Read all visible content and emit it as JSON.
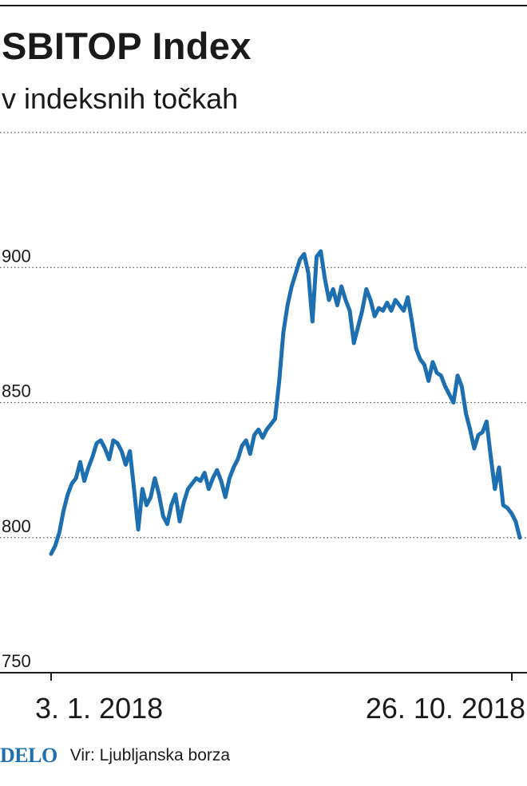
{
  "header": {
    "title": "SBITOP Index",
    "subtitle": "v indeksnih točkah"
  },
  "footer": {
    "logo_text": "DELO",
    "source_text": "Vir: Ljubljanska borza"
  },
  "colors": {
    "line": "#1d6fb0",
    "text": "#1a1a1a",
    "grid": "#555555",
    "logo": "#1d6fb0"
  },
  "chart_data": {
    "type": "line",
    "title": "SBITOP Index",
    "subtitle": "v indeksnih točkah",
    "xlabel": "",
    "ylabel": "",
    "ylim": [
      750,
      950
    ],
    "yticks": [
      750,
      800,
      850,
      900
    ],
    "ytick_labels": [
      "750",
      "800",
      "850",
      "900"
    ],
    "xtick_labels": [
      "3. 1. 2018",
      "26. 10. 2018"
    ],
    "grid": true,
    "legend": "none",
    "series": [
      {
        "values": [
          794,
          797,
          802,
          810,
          816,
          820,
          822,
          828,
          821,
          826,
          830,
          835,
          836,
          833,
          829,
          836,
          835,
          832,
          827,
          832,
          818,
          803,
          818,
          812,
          815,
          822,
          816,
          808,
          805,
          812,
          816,
          806,
          813,
          818,
          820,
          822,
          821,
          824,
          818,
          822,
          825,
          821,
          815,
          822,
          826,
          829,
          834,
          836,
          831,
          838,
          840,
          837,
          840,
          842,
          844,
          858,
          876,
          886,
          893,
          898,
          903,
          905,
          898,
          880,
          904,
          906,
          896,
          888,
          892,
          886,
          893,
          888,
          884,
          872,
          878,
          884,
          892,
          888,
          882,
          885,
          884,
          887,
          884,
          888,
          886,
          884,
          889,
          880,
          870,
          866,
          864,
          858,
          865,
          861,
          860,
          856,
          853,
          850,
          860,
          856,
          846,
          840,
          833,
          838,
          839,
          843,
          830,
          818,
          826,
          812,
          811,
          809,
          806,
          800
        ]
      }
    ]
  }
}
